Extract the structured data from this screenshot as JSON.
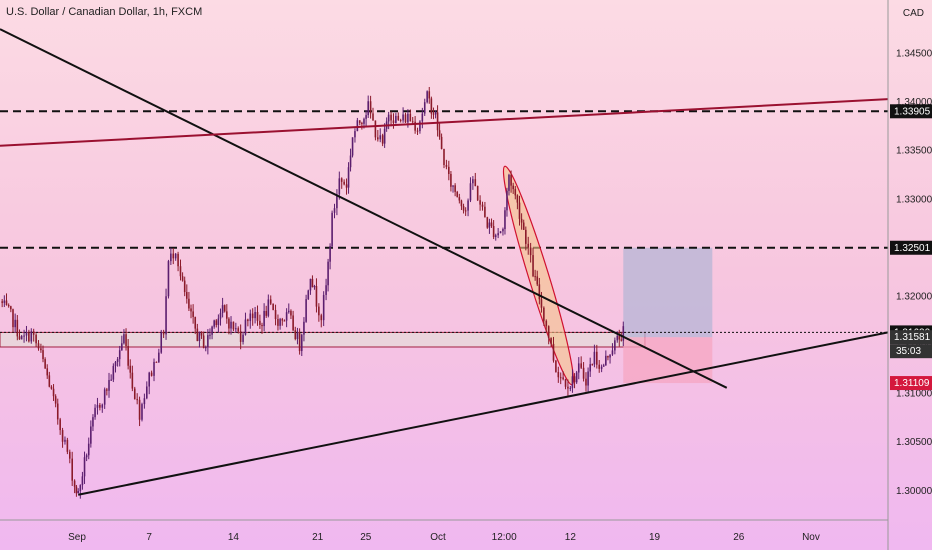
{
  "header": {
    "title": "U.S. Dollar / Canadian Dollar, 1h, FXCM",
    "currency": "CAD"
  },
  "colors": {
    "up": "#5b1e6e",
    "down": "#8b1a2a",
    "resistance": "#9a1030",
    "trend": "#111111",
    "zone_fill": "#e9d6dc",
    "target_fill": "#b6b6d6",
    "stop_fill": "#f6a6c2",
    "highlight": "#f5c58a"
  },
  "chart_data": {
    "type": "candlestick",
    "title": "U.S. Dollar / Canadian Dollar, 1h, FXCM",
    "y_axis": {
      "unit": "CAD",
      "ylim": [
        1.297,
        1.3505
      ],
      "tick_labels": [
        "1.34500",
        "1.34000",
        "1.33500",
        "1.33000",
        "1.32500",
        "1.32000",
        "1.31500",
        "1.31000",
        "1.30500",
        "1.30000"
      ],
      "tick_values": [
        1.345,
        1.34,
        1.335,
        1.33,
        1.325,
        1.32,
        1.315,
        1.31,
        1.305,
        1.3
      ]
    },
    "x_axis": {
      "tick_labels": [
        "Sep",
        "7",
        "14",
        "21",
        "25",
        "Oct",
        "12:00",
        "12",
        "19",
        "26",
        "Nov"
      ],
      "tick_days": [
        0,
        6,
        13,
        20,
        24,
        30,
        35.5,
        41,
        48,
        55,
        61
      ],
      "xlim_days": [
        -6.4,
        67.4
      ]
    },
    "price_path": [
      [
        -6.4,
        1.3195
      ],
      [
        -5.5,
        1.318
      ],
      [
        -4.6,
        1.3155
      ],
      [
        -3.8,
        1.3162
      ],
      [
        -3.0,
        1.314
      ],
      [
        -2.3,
        1.311
      ],
      [
        -1.6,
        1.3075
      ],
      [
        -0.8,
        1.304
      ],
      [
        -0.2,
        1.3005
      ],
      [
        0.1,
        1.2996
      ],
      [
        0.8,
        1.304
      ],
      [
        1.5,
        1.308
      ],
      [
        2.3,
        1.31
      ],
      [
        3.2,
        1.313
      ],
      [
        3.9,
        1.316
      ],
      [
        4.6,
        1.311
      ],
      [
        5.2,
        1.308
      ],
      [
        5.8,
        1.311
      ],
      [
        6.4,
        1.313
      ],
      [
        7.2,
        1.3165
      ],
      [
        7.6,
        1.3235
      ],
      [
        8.2,
        1.325
      ],
      [
        8.6,
        1.322
      ],
      [
        9.3,
        1.3185
      ],
      [
        10.0,
        1.316
      ],
      [
        10.7,
        1.315
      ],
      [
        11.4,
        1.3175
      ],
      [
        12.1,
        1.3185
      ],
      [
        12.8,
        1.317
      ],
      [
        13.6,
        1.316
      ],
      [
        14.4,
        1.3185
      ],
      [
        15.2,
        1.317
      ],
      [
        15.9,
        1.319
      ],
      [
        16.7,
        1.3175
      ],
      [
        17.6,
        1.318
      ],
      [
        18.5,
        1.315
      ],
      [
        19.4,
        1.3225
      ],
      [
        19.9,
        1.3195
      ],
      [
        20.3,
        1.318
      ],
      [
        20.7,
        1.321
      ],
      [
        21.2,
        1.328
      ],
      [
        21.8,
        1.332
      ],
      [
        22.4,
        1.3315
      ],
      [
        22.9,
        1.3365
      ],
      [
        23.5,
        1.338
      ],
      [
        24.2,
        1.3395
      ],
      [
        24.8,
        1.337
      ],
      [
        25.4,
        1.3355
      ],
      [
        25.9,
        1.339
      ],
      [
        26.7,
        1.338
      ],
      [
        27.5,
        1.3385
      ],
      [
        28.3,
        1.3375
      ],
      [
        29.1,
        1.3405
      ],
      [
        29.8,
        1.3385
      ],
      [
        30.3,
        1.335
      ],
      [
        30.9,
        1.332
      ],
      [
        31.6,
        1.3305
      ],
      [
        32.3,
        1.329
      ],
      [
        32.9,
        1.332
      ],
      [
        33.5,
        1.3295
      ],
      [
        34.1,
        1.3275
      ],
      [
        34.8,
        1.3265
      ],
      [
        35.4,
        1.327
      ],
      [
        35.9,
        1.3325
      ],
      [
        36.6,
        1.3295
      ],
      [
        37.3,
        1.326
      ],
      [
        37.9,
        1.3225
      ],
      [
        38.6,
        1.319
      ],
      [
        39.2,
        1.316
      ],
      [
        39.8,
        1.3125
      ],
      [
        40.4,
        1.3115
      ],
      [
        41.0,
        1.311
      ],
      [
        41.7,
        1.3125
      ],
      [
        42.3,
        1.3115
      ],
      [
        43.0,
        1.314
      ],
      [
        43.6,
        1.3125
      ],
      [
        44.3,
        1.3145
      ],
      [
        44.9,
        1.3155
      ],
      [
        45.4,
        1.3163
      ]
    ],
    "horizontal_levels": [
      {
        "price": 1.33905,
        "style": "dashed",
        "label": "1.33905"
      },
      {
        "price": 1.32501,
        "style": "dashed",
        "label": "1.32501"
      },
      {
        "price": 1.3163,
        "style": "dotted",
        "label": "1.31630"
      }
    ],
    "price_labels": [
      {
        "price": 1.31581,
        "label": "1.31581",
        "sub": "35:03"
      },
      {
        "price": 1.31109,
        "label": "1.31109"
      }
    ],
    "trendlines": [
      {
        "name": "falling-trendline",
        "from": [
          -6.4,
          1.3475
        ],
        "to": [
          54.0,
          1.3106
        ]
      },
      {
        "name": "rising-support-line",
        "from": [
          0.1,
          1.2996
        ],
        "to": [
          67.4,
          1.3163
        ]
      },
      {
        "name": "resistance-line",
        "from": [
          -6.4,
          1.3355
        ],
        "to": [
          67.4,
          1.3403
        ]
      }
    ],
    "zones": [
      {
        "name": "support-zone",
        "from_day": -6.4,
        "to_day": 47.2,
        "y_top": 1.3163,
        "y_bottom": 1.3148
      },
      {
        "name": "target-box",
        "from_day": 45.4,
        "to_day": 52.8,
        "y_top": 1.32501,
        "y_bottom": 1.3158
      },
      {
        "name": "stop-box",
        "from_day": 45.4,
        "to_day": 52.8,
        "y_top": 1.3158,
        "y_bottom": 1.31109
      }
    ],
    "highlight_ellipse": {
      "from": [
        35.7,
        1.3328
      ],
      "to": [
        41.0,
        1.3115
      ]
    }
  }
}
